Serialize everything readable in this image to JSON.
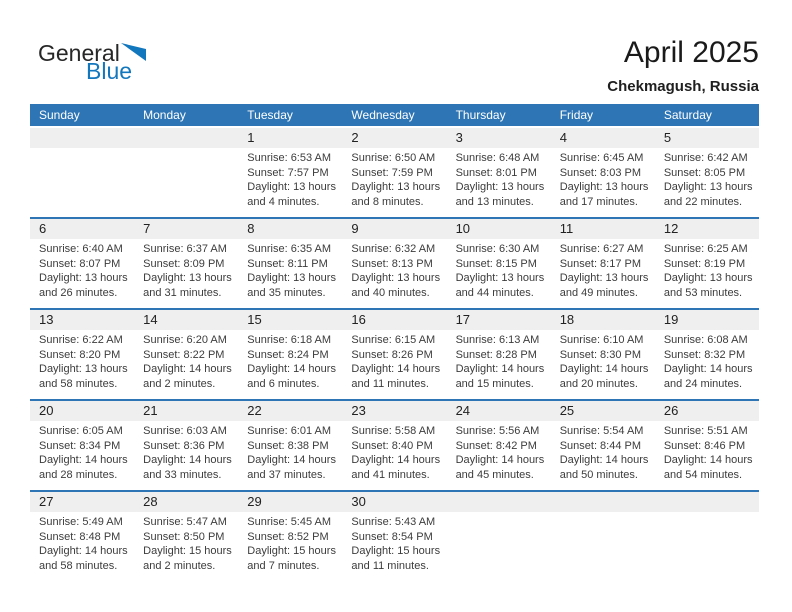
{
  "logo": {
    "text_general": "General",
    "text_blue": "Blue",
    "triangle_icon": "blue-sail-triangle"
  },
  "title": {
    "month_year": "April 2025",
    "location": "Chekmagush, Russia"
  },
  "colors": {
    "header_bg": "#2E75B5",
    "week_separator": "#2E75B5",
    "day_strip_bg": "#EFEFEF",
    "logo_blue": "#1377BE",
    "body_text": "#3C3C3C",
    "weekday_text": "#FFFFFF"
  },
  "weekday_headers": [
    "Sunday",
    "Monday",
    "Tuesday",
    "Wednesday",
    "Thursday",
    "Friday",
    "Saturday"
  ],
  "weeks": [
    [
      {
        "day": "",
        "sunrise": "",
        "sunset": "",
        "daylight": ""
      },
      {
        "day": "",
        "sunrise": "",
        "sunset": "",
        "daylight": ""
      },
      {
        "day": "1",
        "sunrise": "Sunrise: 6:53 AM",
        "sunset": "Sunset: 7:57 PM",
        "daylight": "Daylight: 13 hours and 4 minutes."
      },
      {
        "day": "2",
        "sunrise": "Sunrise: 6:50 AM",
        "sunset": "Sunset: 7:59 PM",
        "daylight": "Daylight: 13 hours and 8 minutes."
      },
      {
        "day": "3",
        "sunrise": "Sunrise: 6:48 AM",
        "sunset": "Sunset: 8:01 PM",
        "daylight": "Daylight: 13 hours and 13 minutes."
      },
      {
        "day": "4",
        "sunrise": "Sunrise: 6:45 AM",
        "sunset": "Sunset: 8:03 PM",
        "daylight": "Daylight: 13 hours and 17 minutes."
      },
      {
        "day": "5",
        "sunrise": "Sunrise: 6:42 AM",
        "sunset": "Sunset: 8:05 PM",
        "daylight": "Daylight: 13 hours and 22 minutes."
      }
    ],
    [
      {
        "day": "6",
        "sunrise": "Sunrise: 6:40 AM",
        "sunset": "Sunset: 8:07 PM",
        "daylight": "Daylight: 13 hours and 26 minutes."
      },
      {
        "day": "7",
        "sunrise": "Sunrise: 6:37 AM",
        "sunset": "Sunset: 8:09 PM",
        "daylight": "Daylight: 13 hours and 31 minutes."
      },
      {
        "day": "8",
        "sunrise": "Sunrise: 6:35 AM",
        "sunset": "Sunset: 8:11 PM",
        "daylight": "Daylight: 13 hours and 35 minutes."
      },
      {
        "day": "9",
        "sunrise": "Sunrise: 6:32 AM",
        "sunset": "Sunset: 8:13 PM",
        "daylight": "Daylight: 13 hours and 40 minutes."
      },
      {
        "day": "10",
        "sunrise": "Sunrise: 6:30 AM",
        "sunset": "Sunset: 8:15 PM",
        "daylight": "Daylight: 13 hours and 44 minutes."
      },
      {
        "day": "11",
        "sunrise": "Sunrise: 6:27 AM",
        "sunset": "Sunset: 8:17 PM",
        "daylight": "Daylight: 13 hours and 49 minutes."
      },
      {
        "day": "12",
        "sunrise": "Sunrise: 6:25 AM",
        "sunset": "Sunset: 8:19 PM",
        "daylight": "Daylight: 13 hours and 53 minutes."
      }
    ],
    [
      {
        "day": "13",
        "sunrise": "Sunrise: 6:22 AM",
        "sunset": "Sunset: 8:20 PM",
        "daylight": "Daylight: 13 hours and 58 minutes."
      },
      {
        "day": "14",
        "sunrise": "Sunrise: 6:20 AM",
        "sunset": "Sunset: 8:22 PM",
        "daylight": "Daylight: 14 hours and 2 minutes."
      },
      {
        "day": "15",
        "sunrise": "Sunrise: 6:18 AM",
        "sunset": "Sunset: 8:24 PM",
        "daylight": "Daylight: 14 hours and 6 minutes."
      },
      {
        "day": "16",
        "sunrise": "Sunrise: 6:15 AM",
        "sunset": "Sunset: 8:26 PM",
        "daylight": "Daylight: 14 hours and 11 minutes."
      },
      {
        "day": "17",
        "sunrise": "Sunrise: 6:13 AM",
        "sunset": "Sunset: 8:28 PM",
        "daylight": "Daylight: 14 hours and 15 minutes."
      },
      {
        "day": "18",
        "sunrise": "Sunrise: 6:10 AM",
        "sunset": "Sunset: 8:30 PM",
        "daylight": "Daylight: 14 hours and 20 minutes."
      },
      {
        "day": "19",
        "sunrise": "Sunrise: 6:08 AM",
        "sunset": "Sunset: 8:32 PM",
        "daylight": "Daylight: 14 hours and 24 minutes."
      }
    ],
    [
      {
        "day": "20",
        "sunrise": "Sunrise: 6:05 AM",
        "sunset": "Sunset: 8:34 PM",
        "daylight": "Daylight: 14 hours and 28 minutes."
      },
      {
        "day": "21",
        "sunrise": "Sunrise: 6:03 AM",
        "sunset": "Sunset: 8:36 PM",
        "daylight": "Daylight: 14 hours and 33 minutes."
      },
      {
        "day": "22",
        "sunrise": "Sunrise: 6:01 AM",
        "sunset": "Sunset: 8:38 PM",
        "daylight": "Daylight: 14 hours and 37 minutes."
      },
      {
        "day": "23",
        "sunrise": "Sunrise: 5:58 AM",
        "sunset": "Sunset: 8:40 PM",
        "daylight": "Daylight: 14 hours and 41 minutes."
      },
      {
        "day": "24",
        "sunrise": "Sunrise: 5:56 AM",
        "sunset": "Sunset: 8:42 PM",
        "daylight": "Daylight: 14 hours and 45 minutes."
      },
      {
        "day": "25",
        "sunrise": "Sunrise: 5:54 AM",
        "sunset": "Sunset: 8:44 PM",
        "daylight": "Daylight: 14 hours and 50 minutes."
      },
      {
        "day": "26",
        "sunrise": "Sunrise: 5:51 AM",
        "sunset": "Sunset: 8:46 PM",
        "daylight": "Daylight: 14 hours and 54 minutes."
      }
    ],
    [
      {
        "day": "27",
        "sunrise": "Sunrise: 5:49 AM",
        "sunset": "Sunset: 8:48 PM",
        "daylight": "Daylight: 14 hours and 58 minutes."
      },
      {
        "day": "28",
        "sunrise": "Sunrise: 5:47 AM",
        "sunset": "Sunset: 8:50 PM",
        "daylight": "Daylight: 15 hours and 2 minutes."
      },
      {
        "day": "29",
        "sunrise": "Sunrise: 5:45 AM",
        "sunset": "Sunset: 8:52 PM",
        "daylight": "Daylight: 15 hours and 7 minutes."
      },
      {
        "day": "30",
        "sunrise": "Sunrise: 5:43 AM",
        "sunset": "Sunset: 8:54 PM",
        "daylight": "Daylight: 15 hours and 11 minutes."
      },
      {
        "day": "",
        "sunrise": "",
        "sunset": "",
        "daylight": ""
      },
      {
        "day": "",
        "sunrise": "",
        "sunset": "",
        "daylight": ""
      },
      {
        "day": "",
        "sunrise": "",
        "sunset": "",
        "daylight": ""
      }
    ]
  ]
}
